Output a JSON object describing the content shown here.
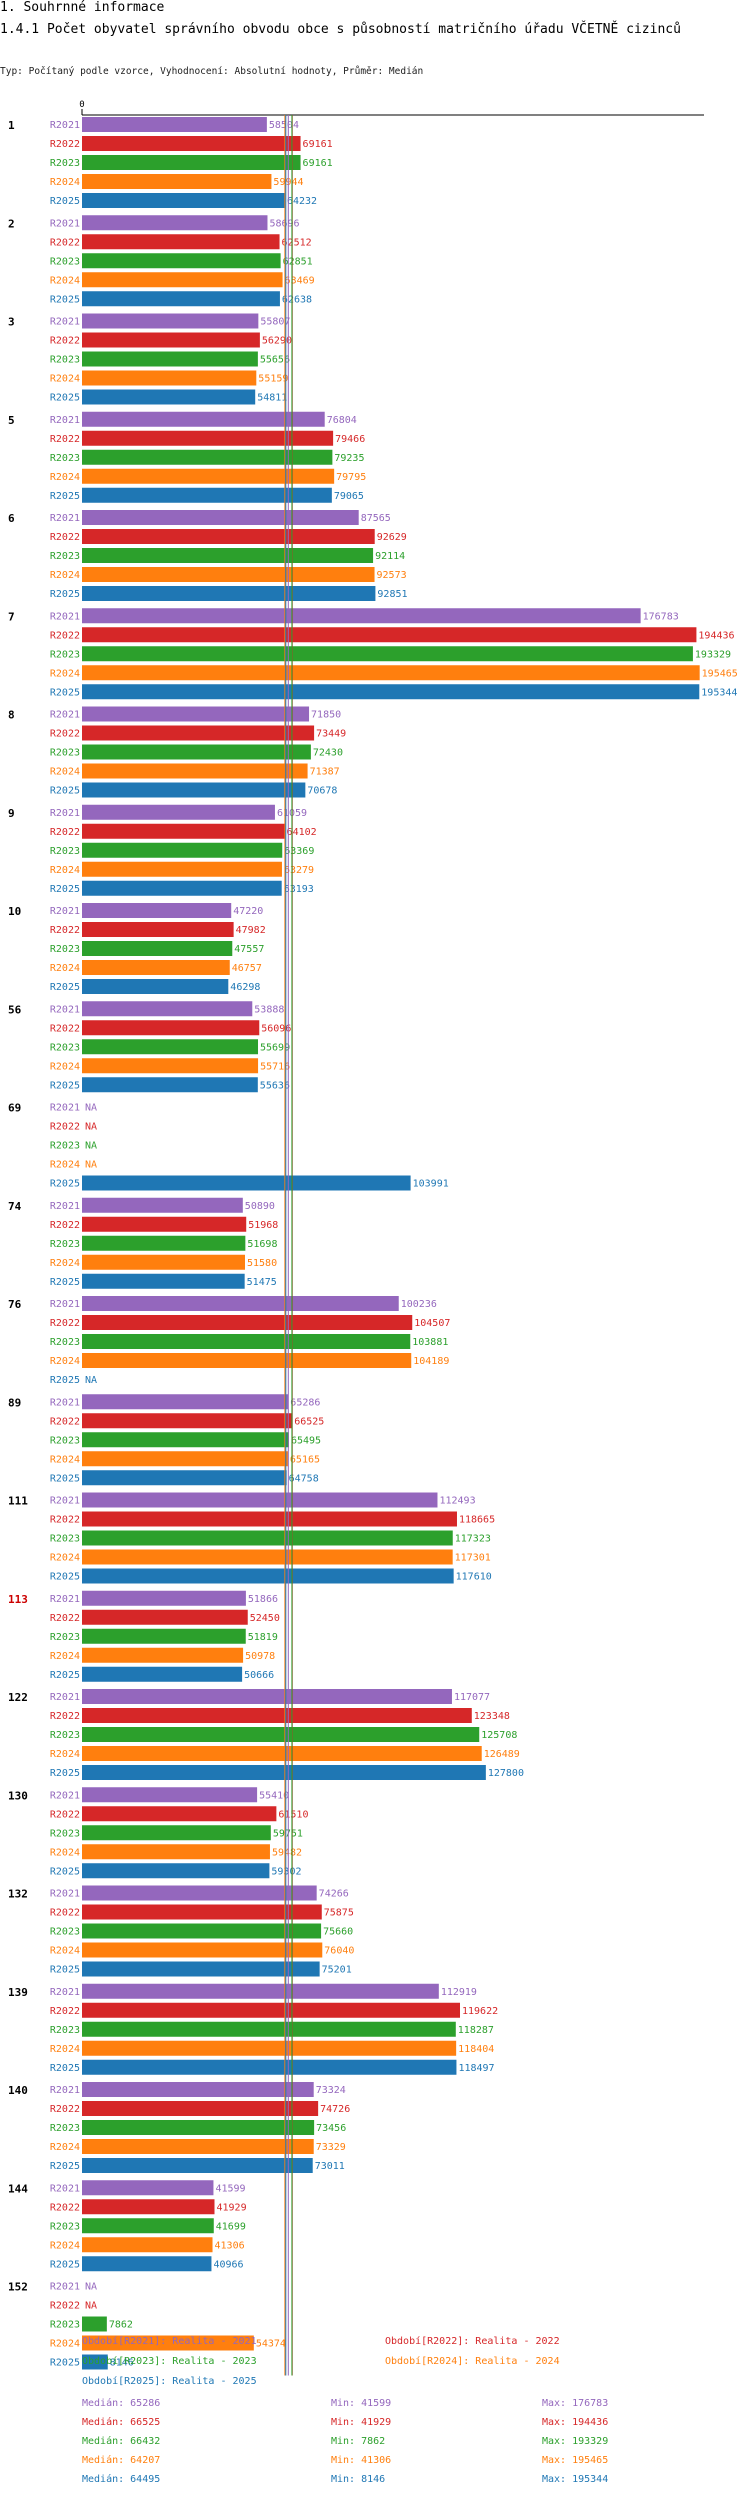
{
  "header": {
    "section": "1. Souhrnné informace",
    "title": "1.4.1 Počet obyvatel správního obvodu obce s působností matričního úřadu VČETNĚ cizinců",
    "subtitle": "Typ: Počítaný podle vzorce, Vyhodnocení: Absolutní hodnoty, Průměr: Medián"
  },
  "colors": {
    "R2021": "#9467bd",
    "R2022": "#d62728",
    "R2023": "#2ca02c",
    "R2024": "#ff7f0e",
    "R2025": "#1f77b4",
    "highlight": "#cc0000"
  },
  "chart_data": {
    "type": "bar",
    "orientation": "horizontal",
    "title": "1.4.1 Počet obyvatel správního obvodu obce s působností matričního úřadu VČETNĚ cizinců",
    "x_axis_ticks": [
      "0"
    ],
    "na_label": "NA",
    "series_names": [
      "R2021",
      "R2022",
      "R2023",
      "R2024",
      "R2025"
    ],
    "highlighted_category": "113",
    "medians": [
      65286,
      66525,
      66432,
      64207,
      64495
    ],
    "groups": [
      {
        "label": "1",
        "values": [
          58504,
          69161,
          69161,
          59944,
          64232
        ]
      },
      {
        "label": "2",
        "values": [
          58696,
          62512,
          62851,
          63469,
          62638
        ]
      },
      {
        "label": "3",
        "values": [
          55807,
          56290,
          55656,
          55159,
          54811
        ]
      },
      {
        "label": "5",
        "values": [
          76804,
          79466,
          79235,
          79795,
          79065
        ]
      },
      {
        "label": "6",
        "values": [
          87565,
          92629,
          92114,
          92573,
          92851
        ]
      },
      {
        "label": "7",
        "values": [
          176783,
          194436,
          193329,
          195465,
          195344
        ]
      },
      {
        "label": "8",
        "values": [
          71850,
          73449,
          72430,
          71387,
          70678
        ]
      },
      {
        "label": "9",
        "values": [
          61059,
          64102,
          63369,
          63279,
          63193
        ]
      },
      {
        "label": "10",
        "values": [
          47220,
          47982,
          47557,
          46757,
          46298
        ]
      },
      {
        "label": "56",
        "values": [
          53888,
          56096,
          55699,
          55716,
          55636
        ]
      },
      {
        "label": "69",
        "values": [
          null,
          null,
          null,
          null,
          103991
        ]
      },
      {
        "label": "74",
        "values": [
          50890,
          51968,
          51698,
          51580,
          51475
        ]
      },
      {
        "label": "76",
        "values": [
          100236,
          104507,
          103881,
          104189,
          null
        ]
      },
      {
        "label": "89",
        "values": [
          65286,
          66525,
          65495,
          65165,
          64758
        ]
      },
      {
        "label": "111",
        "values": [
          112493,
          118665,
          117323,
          117301,
          117610
        ]
      },
      {
        "label": "113",
        "values": [
          51866,
          52450,
          51819,
          50978,
          50666
        ]
      },
      {
        "label": "122",
        "values": [
          117077,
          123348,
          125708,
          126489,
          127800
        ]
      },
      {
        "label": "130",
        "values": [
          55410,
          61510,
          59751,
          59482,
          59302
        ]
      },
      {
        "label": "132",
        "values": [
          74266,
          75875,
          75660,
          76040,
          75201
        ]
      },
      {
        "label": "139",
        "values": [
          112919,
          119622,
          118287,
          118404,
          118497
        ]
      },
      {
        "label": "140",
        "values": [
          73324,
          74726,
          73456,
          73329,
          73011
        ]
      },
      {
        "label": "144",
        "values": [
          41599,
          41929,
          41699,
          41306,
          40966
        ]
      },
      {
        "label": "152",
        "values": [
          null,
          null,
          7862,
          54374,
          8146
        ]
      }
    ]
  },
  "legend": {
    "periods": [
      "Období[R2021]: Realita - 2021",
      "Období[R2022]: Realita - 2022",
      "Období[R2023]: Realita - 2023",
      "Období[R2024]: Realita - 2024",
      "Období[R2025]: Realita - 2025"
    ],
    "stats": [
      {
        "median": "Medián: 65286",
        "min": "Min: 41599",
        "max": "Max: 176783"
      },
      {
        "median": "Medián: 66525",
        "min": "Min: 41929",
        "max": "Max: 194436"
      },
      {
        "median": "Medián: 66432",
        "min": "Min: 7862",
        "max": "Max: 193329"
      },
      {
        "median": "Medián: 64207",
        "min": "Min: 41306",
        "max": "Max: 195465"
      },
      {
        "median": "Medián: 64495",
        "min": "Min: 8146",
        "max": "Max: 195344"
      }
    ]
  }
}
